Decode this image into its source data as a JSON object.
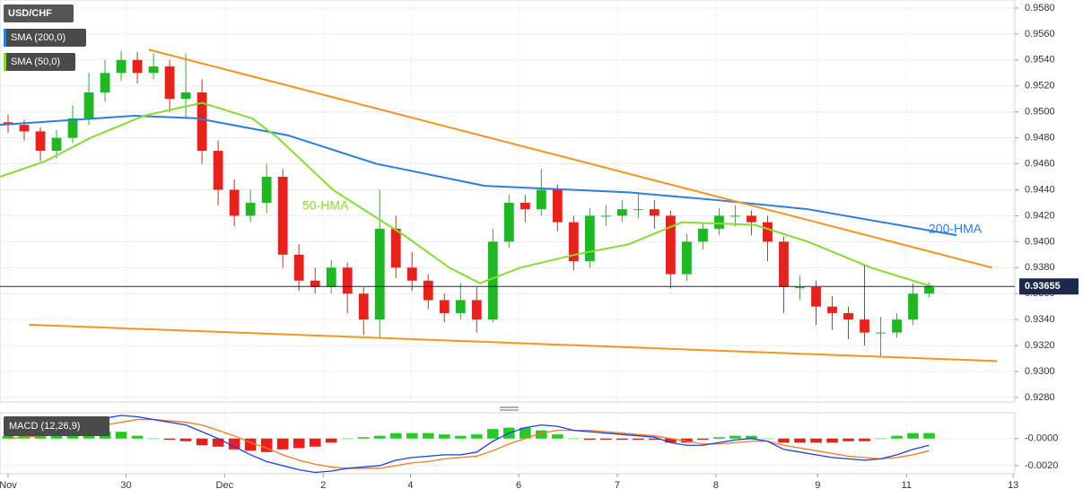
{
  "chart_data": [
    {
      "type": "candlestick",
      "title": "USD/CHF",
      "up_color": "#1fb824",
      "down_color": "#e5221c",
      "xlim": [
        -0.5,
        62.3
      ],
      "xticks": [
        {
          "value": 0,
          "label": "Nov"
        },
        {
          "value": 7.3,
          "label": "30"
        },
        {
          "value": 13.4,
          "label": "Dec"
        },
        {
          "value": 19.5,
          "label": "2"
        },
        {
          "value": 24.9,
          "label": "4"
        },
        {
          "value": 31.6,
          "label": "6"
        },
        {
          "value": 37.7,
          "label": "7"
        },
        {
          "value": 43.8,
          "label": "8"
        },
        {
          "value": 50.1,
          "label": "9"
        },
        {
          "value": 55.6,
          "label": "11"
        },
        {
          "value": 62.2,
          "label": "13"
        }
      ],
      "ylim": [
        0.92765,
        0.95862
      ],
      "yticks": [
        {
          "value": 0.928,
          "label": "0.9280"
        },
        {
          "value": 0.93,
          "label": "0.9300"
        },
        {
          "value": 0.932,
          "label": "0.9320"
        },
        {
          "value": 0.934,
          "label": "0.9340"
        },
        {
          "value": 0.936,
          "label": "0.9360"
        },
        {
          "value": 0.938,
          "label": "0.9380"
        },
        {
          "value": 0.94,
          "label": "0.9400"
        },
        {
          "value": 0.942,
          "label": "0.9420"
        },
        {
          "value": 0.944,
          "label": "0.9440"
        },
        {
          "value": 0.946,
          "label": "0.9460"
        },
        {
          "value": 0.948,
          "label": "0.9480"
        },
        {
          "value": 0.95,
          "label": "0.9500"
        },
        {
          "value": 0.952,
          "label": "0.9520"
        },
        {
          "value": 0.954,
          "label": "0.9540"
        },
        {
          "value": 0.956,
          "label": "0.9560"
        },
        {
          "value": 0.958,
          "label": "0.9580"
        }
      ],
      "grid": true,
      "last_price": 0.93655,
      "ohlc": [
        [
          0.9492,
          0.9498,
          0.9484,
          0.949
        ],
        [
          0.949,
          0.9494,
          0.9478,
          0.9485
        ],
        [
          0.9485,
          0.9488,
          0.9462,
          0.947
        ],
        [
          0.947,
          0.9486,
          0.9464,
          0.948
        ],
        [
          0.948,
          0.9505,
          0.9476,
          0.9495
        ],
        [
          0.9495,
          0.953,
          0.949,
          0.9515
        ],
        [
          0.9515,
          0.954,
          0.9508,
          0.953
        ],
        [
          0.953,
          0.9547,
          0.9524,
          0.954
        ],
        [
          0.954,
          0.9546,
          0.9522,
          0.953
        ],
        [
          0.953,
          0.9545,
          0.9525,
          0.9535
        ],
        [
          0.9535,
          0.954,
          0.95,
          0.951
        ],
        [
          0.951,
          0.9545,
          0.9495,
          0.9515
        ],
        [
          0.9515,
          0.9525,
          0.946,
          0.947
        ],
        [
          0.947,
          0.9478,
          0.9428,
          0.944
        ],
        [
          0.944,
          0.9448,
          0.9412,
          0.942
        ],
        [
          0.942,
          0.944,
          0.9415,
          0.943
        ],
        [
          0.943,
          0.946,
          0.9422,
          0.945
        ],
        [
          0.945,
          0.9456,
          0.938,
          0.939
        ],
        [
          0.939,
          0.9398,
          0.9362,
          0.937
        ],
        [
          0.937,
          0.938,
          0.936,
          0.9365
        ],
        [
          0.9365,
          0.9386,
          0.936,
          0.938
        ],
        [
          0.938,
          0.9384,
          0.9345,
          0.936
        ],
        [
          0.936,
          0.9365,
          0.9328,
          0.934
        ],
        [
          0.934,
          0.944,
          0.9326,
          0.941
        ],
        [
          0.941,
          0.942,
          0.9372,
          0.938
        ],
        [
          0.938,
          0.9392,
          0.9362,
          0.937
        ],
        [
          0.937,
          0.9375,
          0.9348,
          0.9355
        ],
        [
          0.9355,
          0.936,
          0.9338,
          0.9345
        ],
        [
          0.9345,
          0.9368,
          0.934,
          0.9355
        ],
        [
          0.9355,
          0.9365,
          0.933,
          0.934
        ],
        [
          0.934,
          0.941,
          0.9338,
          0.94
        ],
        [
          0.94,
          0.9436,
          0.9395,
          0.943
        ],
        [
          0.943,
          0.9436,
          0.9415,
          0.9425
        ],
        [
          0.9425,
          0.9456,
          0.942,
          0.944
        ],
        [
          0.944,
          0.9444,
          0.9408,
          0.9415
        ],
        [
          0.9415,
          0.942,
          0.9378,
          0.9385
        ],
        [
          0.9385,
          0.9426,
          0.938,
          0.942
        ],
        [
          0.942,
          0.9428,
          0.9412,
          0.942
        ],
        [
          0.942,
          0.9432,
          0.9415,
          0.9425
        ],
        [
          0.9425,
          0.9438,
          0.9418,
          0.9425
        ],
        [
          0.9425,
          0.9432,
          0.941,
          0.942
        ],
        [
          0.942,
          0.9424,
          0.9364,
          0.9375
        ],
        [
          0.9375,
          0.9406,
          0.937,
          0.94
        ],
        [
          0.94,
          0.9415,
          0.9394,
          0.941
        ],
        [
          0.941,
          0.9426,
          0.9405,
          0.942
        ],
        [
          0.942,
          0.9428,
          0.9412,
          0.942
        ],
        [
          0.942,
          0.9424,
          0.9405,
          0.9415
        ],
        [
          0.9415,
          0.942,
          0.9385,
          0.94
        ],
        [
          0.94,
          0.9404,
          0.9345,
          0.9365
        ],
        [
          0.9365,
          0.9374,
          0.9355,
          0.9365
        ],
        [
          0.9365,
          0.937,
          0.9336,
          0.935
        ],
        [
          0.935,
          0.9358,
          0.9332,
          0.9345
        ],
        [
          0.9345,
          0.935,
          0.9325,
          0.934
        ],
        [
          0.934,
          0.9382,
          0.932,
          0.933
        ],
        [
          0.933,
          0.9342,
          0.9312,
          0.933
        ],
        [
          0.933,
          0.9345,
          0.9326,
          0.934
        ],
        [
          0.934,
          0.9368,
          0.9336,
          0.936
        ],
        [
          0.936,
          0.93685,
          0.9357,
          0.93655
        ]
      ],
      "series": [
        {
          "name": "SMA (200,0)",
          "color": "#2b7ddf",
          "x": [
            -0.5,
            7.8,
            11.7,
            17.3,
            22.8,
            29.5,
            38.4,
            43.9,
            49.5,
            58.7
          ],
          "values": [
            0.949,
            0.9497,
            0.9495,
            0.9482,
            0.946,
            0.9443,
            0.9438,
            0.9432,
            0.9425,
            0.9405
          ]
        },
        {
          "name": "SMA (50,0)",
          "color": "#86dc2f",
          "x": [
            -0.5,
            2.3,
            5.1,
            8.4,
            12.0,
            15.1,
            16.7,
            20.1,
            24.5,
            27.3,
            29.2,
            31.7,
            35.1,
            38.4,
            41.7,
            46.2,
            49.5,
            53.4,
            57.3
          ],
          "values": [
            0.945,
            0.9462,
            0.948,
            0.9497,
            0.9507,
            0.9495,
            0.948,
            0.944,
            0.9405,
            0.938,
            0.9368,
            0.938,
            0.939,
            0.9398,
            0.9415,
            0.9413,
            0.94,
            0.938,
            0.9365
          ]
        }
      ],
      "trendlines": [
        {
          "color": "#f7941d",
          "x": [
            8.7,
            60.9
          ],
          "values": [
            0.9548,
            0.938
          ]
        },
        {
          "color": "#f7941d",
          "x": [
            1.3,
            61.2
          ],
          "values": [
            0.9336,
            0.9308
          ]
        }
      ],
      "annotations": [
        "50-HMA",
        "200-HMA"
      ]
    },
    {
      "type": "macd",
      "title": "MACD (12,26,9)",
      "ylim": [
        -0.0026,
        0.0019
      ],
      "yticks": [
        {
          "value": 0,
          "label": "-0.0000"
        },
        {
          "value": -0.002,
          "label": "-0.0020"
        }
      ],
      "macd": {
        "color": "#1f3df0",
        "values": [
          0.0002,
          0.0003,
          0.0004,
          0.0006,
          0.0009,
          0.0012,
          0.0015,
          0.0017,
          0.0016,
          0.0014,
          0.0012,
          0.001,
          0.0005,
          0.0,
          -0.0006,
          -0.0012,
          -0.0017,
          -0.002,
          -0.0023,
          -0.0025,
          -0.0024,
          -0.0022,
          -0.0021,
          -0.002,
          -0.0016,
          -0.0014,
          -0.0013,
          -0.0012,
          -0.0012,
          -0.001,
          -0.0002,
          0.0004,
          0.0008,
          0.001,
          0.0009,
          0.0006,
          0.0005,
          0.0004,
          0.0003,
          0.0002,
          0.0001,
          -0.0003,
          -0.0005,
          -0.0005,
          -0.0003,
          -0.0001,
          0.0,
          -0.0002,
          -0.0008,
          -0.001,
          -0.0012,
          -0.0014,
          -0.0015,
          -0.0016,
          -0.0015,
          -0.0012,
          -0.0008,
          -0.0005
        ]
      },
      "signal": {
        "color": "#f47a20",
        "values": [
          0.0,
          0.0001,
          0.0002,
          0.0003,
          0.0005,
          0.0007,
          0.001,
          0.0012,
          0.0014,
          0.0014,
          0.0013,
          0.0012,
          0.001,
          0.0006,
          0.0002,
          -0.0003,
          -0.0007,
          -0.0012,
          -0.0016,
          -0.0019,
          -0.0021,
          -0.0022,
          -0.0022,
          -0.0022,
          -0.002,
          -0.0018,
          -0.0017,
          -0.0015,
          -0.0014,
          -0.0013,
          -0.0009,
          -0.0004,
          0.0,
          0.0004,
          0.0006,
          0.0006,
          0.0006,
          0.0005,
          0.0004,
          0.0003,
          0.0002,
          0.0,
          -0.0002,
          -0.0004,
          -0.0004,
          -0.0003,
          -0.0002,
          -0.0002,
          -0.0005,
          -0.0007,
          -0.0009,
          -0.0011,
          -0.0013,
          -0.0014,
          -0.0015,
          -0.0014,
          -0.0012,
          -0.0009
        ]
      },
      "histogram": {
        "up_color": "#22cc22",
        "down_color": "#e8201c",
        "values": [
          0.0002,
          0.0002,
          0.0002,
          0.0003,
          0.0004,
          0.0005,
          0.0005,
          0.0005,
          0.0002,
          0.0,
          -0.0001,
          -0.0002,
          -0.0005,
          -0.0006,
          -0.0008,
          -0.0009,
          -0.001,
          -0.0008,
          -0.0007,
          -0.0006,
          -0.0003,
          0.0,
          0.0001,
          0.0002,
          0.0004,
          0.0004,
          0.0004,
          0.0003,
          0.0002,
          0.0003,
          0.0007,
          0.0008,
          0.0008,
          0.0006,
          0.0003,
          0.0,
          -0.0001,
          -0.0001,
          -0.0001,
          -0.0001,
          -0.0001,
          -0.0003,
          -0.0003,
          -0.0001,
          0.0001,
          0.0002,
          0.0002,
          0.0,
          -0.0003,
          -0.0003,
          -0.0003,
          -0.0003,
          -0.0002,
          -0.0002,
          0.0,
          0.0002,
          0.0004,
          0.0004
        ]
      }
    }
  ]
}
